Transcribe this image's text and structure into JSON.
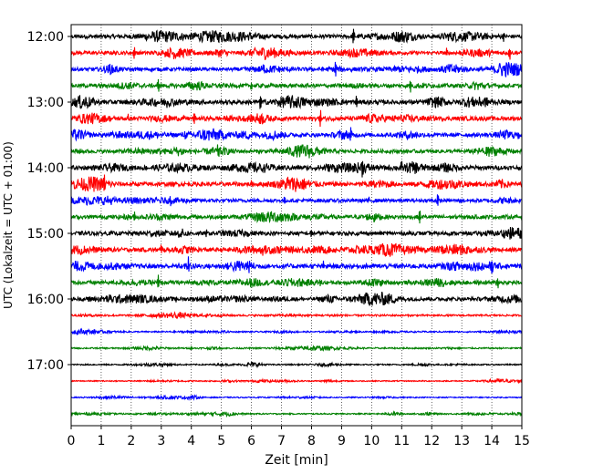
{
  "chart_data": {
    "type": "line",
    "title": "",
    "xlabel": "Zeit  [min]",
    "ylabel": "UTC (Lokalzeit = UTC + 01:00)",
    "xlim": [
      0,
      15
    ],
    "x_ticks": [
      0,
      1,
      2,
      3,
      4,
      5,
      6,
      7,
      8,
      9,
      10,
      11,
      12,
      13,
      14,
      15
    ],
    "x_tick_labels": [
      "0",
      "1",
      "2",
      "3",
      "4",
      "5",
      "6",
      "7",
      "8",
      "9",
      "10",
      "11",
      "12",
      "13",
      "14",
      "15"
    ],
    "y_tick_labels": [
      "12:00",
      "13:00",
      "14:00",
      "15:00",
      "16:00",
      "17:00"
    ],
    "grid": "vertical dotted at each minute",
    "trace_interval_minutes": 15,
    "trace_color_cycle": [
      "#000000",
      "#ff0000",
      "#0000ff",
      "#008000"
    ],
    "traces": [
      {
        "start": "12:00",
        "noise": 0.55,
        "spikes": [
          [
            9.4,
            1.0
          ],
          [
            14.4,
            0.5
          ],
          [
            2.1,
            0.3
          ]
        ]
      },
      {
        "start": "12:15",
        "noise": 0.5,
        "spikes": [
          [
            2.1,
            0.9
          ],
          [
            14.6,
            0.8
          ],
          [
            12.5,
            0.5
          ],
          [
            3.1,
            0.4
          ]
        ]
      },
      {
        "start": "12:30",
        "noise": 0.5,
        "spikes": [
          [
            8.8,
            0.9
          ],
          [
            1.3,
            0.4
          ],
          [
            6.4,
            0.4
          ]
        ]
      },
      {
        "start": "12:45",
        "noise": 0.55,
        "spikes": [
          [
            2.9,
            0.8
          ],
          [
            11.3,
            0.8
          ],
          [
            6.0,
            0.4
          ]
        ]
      },
      {
        "start": "13:00",
        "noise": 0.6,
        "spikes": [
          [
            6.3,
            0.9
          ],
          [
            9.5,
            0.7
          ],
          [
            3.2,
            0.5
          ]
        ]
      },
      {
        "start": "13:15",
        "noise": 0.6,
        "spikes": [
          [
            8.3,
            1.0
          ],
          [
            4.1,
            0.6
          ],
          [
            1.9,
            0.4
          ]
        ]
      },
      {
        "start": "13:30",
        "noise": 0.55,
        "spikes": [
          [
            9.3,
            0.9
          ],
          [
            14.9,
            0.5
          ],
          [
            3.8,
            0.4
          ]
        ]
      },
      {
        "start": "13:45",
        "noise": 0.5,
        "spikes": [
          [
            4.9,
            0.8
          ],
          [
            13.9,
            0.7
          ],
          [
            8.0,
            0.3
          ]
        ]
      },
      {
        "start": "14:00",
        "noise": 0.6,
        "spikes": [
          [
            9.7,
            0.8
          ],
          [
            11.0,
            0.7
          ],
          [
            6.4,
            0.6
          ]
        ]
      },
      {
        "start": "14:15",
        "noise": 0.6,
        "spikes": [
          [
            1.1,
            0.8
          ],
          [
            13.5,
            0.7
          ],
          [
            6.0,
            0.6
          ],
          [
            7.2,
            0.4
          ]
        ]
      },
      {
        "start": "14:30",
        "noise": 0.5,
        "spikes": [
          [
            7.1,
            0.7
          ],
          [
            12.2,
            0.8
          ],
          [
            3.3,
            0.4
          ],
          [
            9.9,
            0.4
          ]
        ]
      },
      {
        "start": "14:45",
        "noise": 0.55,
        "spikes": [
          [
            2.1,
            0.8
          ],
          [
            11.6,
            0.8
          ],
          [
            7.0,
            0.5
          ],
          [
            10.1,
            0.4
          ]
        ]
      },
      {
        "start": "15:00",
        "noise": 0.55,
        "spikes": [
          [
            8.0,
            0.6
          ],
          [
            5.9,
            0.4
          ],
          [
            4.5,
            0.3
          ]
        ]
      },
      {
        "start": "15:15",
        "noise": 0.6,
        "spikes": [
          [
            3.0,
            0.6
          ],
          [
            6.4,
            0.5
          ],
          [
            13.9,
            0.3
          ]
        ]
      },
      {
        "start": "15:30",
        "noise": 0.65,
        "spikes": [
          [
            3.9,
            1.0
          ],
          [
            14.0,
            0.9
          ],
          [
            5.9,
            0.6
          ],
          [
            8.4,
            0.5
          ]
        ]
      },
      {
        "start": "15:45",
        "noise": 0.55,
        "spikes": [
          [
            2.9,
            0.9
          ],
          [
            14.2,
            0.8
          ],
          [
            8.3,
            0.4
          ]
        ]
      },
      {
        "start": "16:00",
        "noise": 0.5,
        "spikes": [
          [
            0.6,
            0.4
          ],
          [
            3.5,
            0.5
          ],
          [
            6.1,
            0.3
          ]
        ]
      },
      {
        "start": "16:15",
        "noise": 0.25,
        "spikes": []
      },
      {
        "start": "16:30",
        "noise": 0.2,
        "spikes": []
      },
      {
        "start": "16:45",
        "noise": 0.2,
        "spikes": [
          [
            4.0,
            0.3
          ]
        ]
      },
      {
        "start": "17:00",
        "noise": 0.18,
        "spikes": []
      },
      {
        "start": "17:15",
        "noise": 0.16,
        "spikes": []
      },
      {
        "start": "17:30",
        "noise": 0.16,
        "spikes": []
      },
      {
        "start": "17:45",
        "noise": 0.18,
        "spikes": []
      }
    ]
  }
}
